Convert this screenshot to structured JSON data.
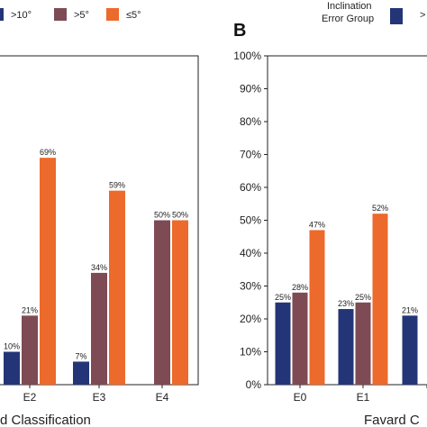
{
  "chart_data": [
    {
      "type": "bar",
      "panel_label": "",
      "categories": [
        "E2",
        "E3",
        "E4"
      ],
      "series": [
        {
          "name": ">10°",
          "color": "#243577",
          "values": [
            10,
            7,
            null
          ]
        },
        {
          "name": ">5°",
          "color": "#7e4b55",
          "values": [
            21,
            34,
            50
          ]
        },
        {
          "name": "≤5°",
          "color": "#ec6a2c",
          "values": [
            69,
            59,
            50
          ]
        }
      ],
      "data_labels": [
        [
          "10%",
          "21%",
          "69%"
        ],
        [
          "7%",
          "34%",
          "59%"
        ],
        [
          "",
          "50%",
          "50%"
        ]
      ],
      "xlabel": "d Classification",
      "ylabel": "",
      "ylim": [
        0,
        100
      ],
      "grid": false,
      "legend": "top"
    },
    {
      "type": "bar",
      "panel_label": "B",
      "categories": [
        "E0",
        "E1",
        ""
      ],
      "series": [
        {
          "name": ">10°",
          "color": "#243577",
          "values": [
            25,
            23,
            21
          ]
        },
        {
          "name": ">5°",
          "color": "#7e4b55",
          "values": [
            28,
            25,
            null
          ]
        },
        {
          "name": "≤5°",
          "color": "#ec6a2c",
          "values": [
            47,
            52,
            null
          ]
        }
      ],
      "data_labels": [
        [
          "25%",
          "28%",
          "47%"
        ],
        [
          "23%",
          "25%",
          "52%"
        ],
        [
          "21%",
          "",
          ""
        ]
      ],
      "yticks": [
        "0%",
        "10%",
        "20%",
        "30%",
        "40%",
        "50%",
        "60%",
        "70%",
        "80%",
        "90%",
        "100%"
      ],
      "xlabel": "Favard C",
      "ylabel": "",
      "ylim": [
        0,
        100
      ],
      "grid": false,
      "legend": "top"
    }
  ],
  "legend": {
    "title": "Inclination\nError Group",
    "items": [
      {
        "label": ">10°",
        "color": "#243577"
      },
      {
        "label": ">5°",
        "color": "#7e4b55"
      },
      {
        "label": "≤5°",
        "color": "#ec6a2c"
      }
    ],
    "right_fragment": ">"
  }
}
